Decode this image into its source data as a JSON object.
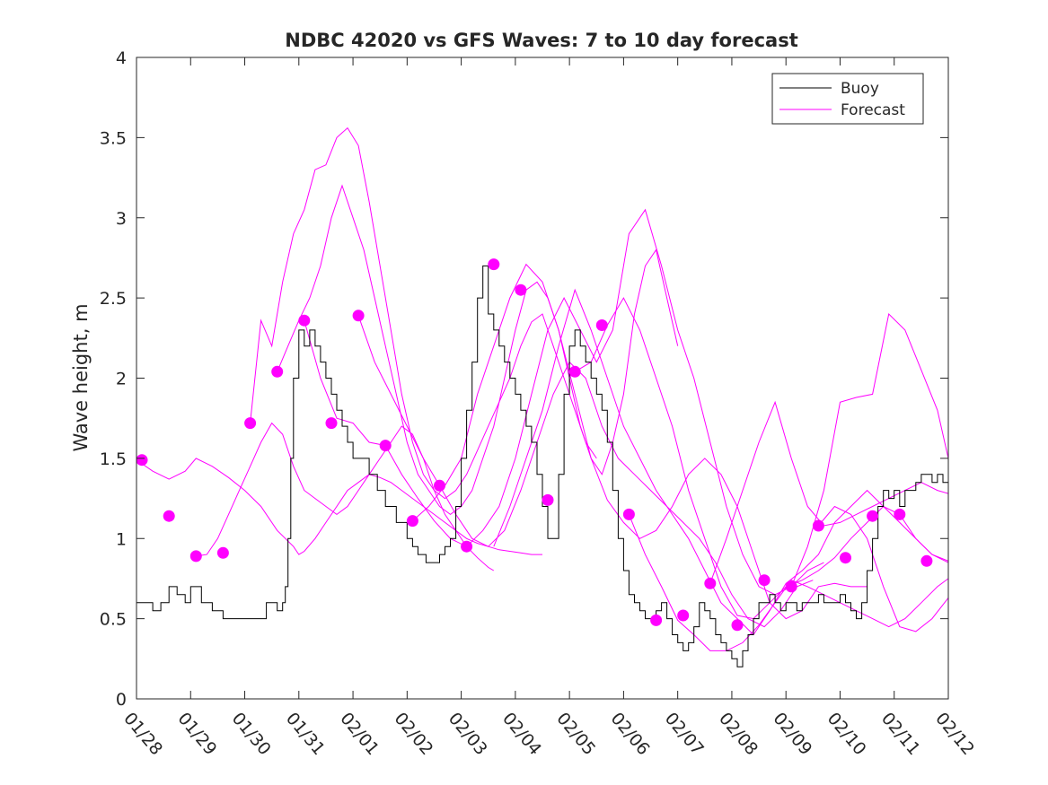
{
  "chart_data": {
    "type": "line",
    "title": "NDBC 42020 vs GFS Waves: 7 to 10 day forecast",
    "xlabel": "",
    "ylabel": "Wave height, m",
    "xlim": [
      0,
      15
    ],
    "ylim": [
      0,
      4
    ],
    "x_ticks": [
      0,
      1,
      2,
      3,
      4,
      5,
      6,
      7,
      8,
      9,
      10,
      11,
      12,
      13,
      14,
      15
    ],
    "x_tick_labels": [
      "01/28",
      "01/29",
      "01/30",
      "01/31",
      "02/01",
      "02/02",
      "02/03",
      "02/04",
      "02/05",
      "02/06",
      "02/07",
      "02/08",
      "02/09",
      "02/10",
      "02/11",
      "02/12"
    ],
    "y_ticks": [
      0,
      0.5,
      1,
      1.5,
      2,
      2.5,
      3,
      3.5,
      4
    ],
    "y_tick_labels": [
      "0",
      "0.5",
      "1",
      "1.5",
      "2",
      "2.5",
      "3",
      "3.5",
      "4"
    ],
    "legend": {
      "position": "top-right",
      "entries": [
        "Buoy",
        "Forecast"
      ]
    },
    "colors": {
      "buoy": "#000000",
      "forecast": "#ff00ff",
      "axes": "#262626"
    },
    "buoy": {
      "name": "Buoy",
      "x": [
        0,
        0.15,
        0.3,
        0.45,
        0.6,
        0.75,
        0.9,
        1.0,
        1.2,
        1.4,
        1.6,
        1.8,
        2.0,
        2.2,
        2.4,
        2.6,
        2.7,
        2.75,
        2.8,
        2.85,
        2.9,
        3.0,
        3.1,
        3.2,
        3.3,
        3.4,
        3.5,
        3.6,
        3.7,
        3.8,
        3.9,
        4.0,
        4.15,
        4.3,
        4.45,
        4.6,
        4.8,
        5.0,
        5.1,
        5.2,
        5.35,
        5.5,
        5.6,
        5.7,
        5.8,
        5.9,
        6.0,
        6.1,
        6.2,
        6.3,
        6.4,
        6.5,
        6.6,
        6.7,
        6.8,
        6.9,
        7.0,
        7.1,
        7.2,
        7.3,
        7.4,
        7.5,
        7.6,
        7.7,
        7.8,
        7.9,
        8.0,
        8.1,
        8.2,
        8.3,
        8.4,
        8.5,
        8.6,
        8.7,
        8.8,
        8.9,
        9.0,
        9.1,
        9.2,
        9.3,
        9.4,
        9.5,
        9.6,
        9.7,
        9.8,
        9.9,
        10.0,
        10.1,
        10.2,
        10.3,
        10.4,
        10.5,
        10.6,
        10.7,
        10.8,
        10.9,
        11.0,
        11.1,
        11.2,
        11.3,
        11.4,
        11.5,
        11.6,
        11.7,
        11.8,
        11.9,
        12.0,
        12.1,
        12.2,
        12.3,
        12.4,
        12.5,
        12.6,
        12.7,
        12.8,
        12.9,
        13.0,
        13.1,
        13.2,
        13.3,
        13.4,
        13.5,
        13.6,
        13.7,
        13.8,
        13.9,
        14.0,
        14.1,
        14.2,
        14.3,
        14.4,
        14.5,
        14.6,
        14.7,
        14.8,
        14.9,
        15.0
      ],
      "y": [
        0.6,
        0.6,
        0.55,
        0.6,
        0.7,
        0.65,
        0.6,
        0.7,
        0.6,
        0.55,
        0.5,
        0.5,
        0.5,
        0.5,
        0.6,
        0.55,
        0.6,
        0.7,
        1.0,
        1.5,
        2.0,
        2.3,
        2.2,
        2.3,
        2.2,
        2.1,
        2.0,
        1.9,
        1.8,
        1.7,
        1.6,
        1.5,
        1.5,
        1.4,
        1.3,
        1.2,
        1.1,
        1.0,
        0.95,
        0.9,
        0.85,
        0.85,
        0.9,
        0.95,
        1.0,
        1.2,
        1.5,
        1.8,
        2.1,
        2.5,
        2.7,
        2.4,
        2.3,
        2.2,
        2.1,
        2.0,
        1.9,
        1.8,
        1.7,
        1.6,
        1.4,
        1.2,
        1.0,
        1.0,
        1.4,
        1.9,
        2.2,
        2.3,
        2.2,
        2.1,
        2.0,
        1.9,
        1.8,
        1.6,
        1.3,
        1.0,
        0.8,
        0.65,
        0.6,
        0.55,
        0.5,
        0.5,
        0.55,
        0.6,
        0.5,
        0.4,
        0.35,
        0.3,
        0.35,
        0.45,
        0.6,
        0.55,
        0.5,
        0.4,
        0.35,
        0.3,
        0.25,
        0.2,
        0.3,
        0.4,
        0.5,
        0.6,
        0.6,
        0.65,
        0.6,
        0.55,
        0.6,
        0.6,
        0.55,
        0.6,
        0.6,
        0.6,
        0.65,
        0.6,
        0.6,
        0.6,
        0.65,
        0.6,
        0.55,
        0.5,
        0.6,
        0.8,
        1.0,
        1.2,
        1.3,
        1.25,
        1.3,
        1.2,
        1.3,
        1.3,
        1.35,
        1.4,
        1.4,
        1.35,
        1.4,
        1.35,
        1.4
      ]
    },
    "forecasts": [
      {
        "name": "Forecast",
        "x": [
          0.0,
          0.3,
          0.6,
          0.9,
          1.1,
          1.4,
          1.7,
          2.0,
          2.3,
          2.6,
          2.9,
          3.0,
          3.1,
          3.3,
          3.5,
          3.7,
          3.9,
          4.1,
          4.3,
          4.5,
          4.7,
          4.9,
          5.1,
          5.3,
          5.5,
          5.7,
          5.9,
          6.1,
          6.3,
          6.5,
          6.7,
          6.9,
          7.1,
          7.3,
          7.5
        ],
        "y": [
          1.49,
          1.42,
          1.37,
          1.42,
          1.5,
          1.45,
          1.38,
          1.3,
          1.2,
          1.05,
          0.95,
          0.9,
          0.92,
          1.0,
          1.1,
          1.2,
          1.3,
          1.35,
          1.4,
          1.38,
          1.35,
          1.3,
          1.25,
          1.2,
          1.15,
          1.1,
          1.05,
          1.0,
          0.97,
          0.95,
          0.93,
          0.92,
          0.91,
          0.9,
          0.9
        ]
      },
      {
        "name": "Forecast",
        "x": [
          1.1,
          1.3,
          1.5,
          1.7,
          1.9,
          2.1,
          2.3,
          2.5,
          2.7,
          2.9,
          3.1,
          3.3,
          3.5,
          3.7,
          3.9,
          4.1,
          4.3,
          4.5,
          4.7,
          4.9,
          5.1,
          5.3,
          5.5,
          5.7,
          5.9,
          6.1,
          6.3,
          6.5,
          6.6
        ],
        "y": [
          0.89,
          0.9,
          1.0,
          1.15,
          1.3,
          1.45,
          1.6,
          1.72,
          1.65,
          1.45,
          1.3,
          1.25,
          1.2,
          1.15,
          1.2,
          1.3,
          1.4,
          1.5,
          1.6,
          1.7,
          1.65,
          1.5,
          1.3,
          1.15,
          1.05,
          0.95,
          0.88,
          0.82,
          0.8
        ]
      },
      {
        "name": "Forecast",
        "x": [
          2.1,
          2.3,
          2.5,
          2.7,
          2.9,
          3.1,
          3.3,
          3.5,
          3.7,
          3.9,
          4.1,
          4.3,
          4.5,
          4.7,
          4.9,
          5.1,
          5.3,
          5.5,
          5.7,
          5.9,
          6.1,
          6.3,
          6.5,
          6.7,
          6.9,
          7.1,
          7.3,
          7.5,
          7.7,
          7.9,
          8.1,
          8.3,
          8.5
        ],
        "y": [
          1.72,
          2.36,
          2.2,
          2.6,
          2.9,
          3.05,
          3.3,
          3.33,
          3.5,
          3.56,
          3.45,
          3.1,
          2.7,
          2.3,
          1.9,
          1.6,
          1.4,
          1.3,
          1.25,
          1.3,
          1.4,
          1.55,
          1.7,
          1.85,
          2.0,
          2.2,
          2.35,
          2.4,
          2.2,
          2.0,
          1.8,
          1.6,
          1.5
        ]
      },
      {
        "name": "Forecast",
        "x": [
          2.6,
          2.8,
          3.0,
          3.2,
          3.4,
          3.6,
          3.8,
          4.0,
          4.2,
          4.4,
          4.6,
          4.8,
          5.0,
          5.2,
          5.4,
          5.6,
          5.8,
          6.0,
          6.2,
          6.4,
          6.6,
          6.8,
          7.0,
          7.2,
          7.4,
          7.6,
          7.8,
          8.0,
          8.2,
          8.4,
          8.6,
          8.8,
          9.0,
          9.2,
          9.4,
          9.6,
          9.8,
          10.0
        ],
        "y": [
          2.04,
          2.2,
          2.36,
          2.5,
          2.7,
          3.0,
          3.2,
          3.0,
          2.8,
          2.5,
          2.2,
          1.9,
          1.6,
          1.4,
          1.3,
          1.2,
          1.15,
          1.2,
          1.3,
          1.5,
          1.7,
          2.0,
          2.3,
          2.55,
          2.6,
          2.5,
          2.3,
          2.0,
          1.7,
          1.5,
          1.4,
          1.6,
          1.9,
          2.4,
          2.7,
          2.8,
          2.5,
          2.2
        ]
      },
      {
        "name": "Forecast",
        "x": [
          3.1,
          3.4,
          3.7,
          4.0,
          4.3,
          4.6,
          4.9,
          5.2,
          5.5,
          5.8,
          6.1,
          6.4,
          6.7,
          7.0,
          7.3,
          7.6,
          7.9,
          8.2,
          8.5,
          8.8,
          9.1,
          9.4,
          9.7,
          10.0,
          10.3,
          10.6,
          10.9,
          11.2,
          11.5,
          11.8,
          12.1,
          12.4,
          12.7
        ],
        "y": [
          2.36,
          2.0,
          1.75,
          1.72,
          1.6,
          1.58,
          1.4,
          1.25,
          1.11,
          1.0,
          0.95,
          1.05,
          1.2,
          1.5,
          1.9,
          2.3,
          2.5,
          2.3,
          2.1,
          2.3,
          2.9,
          3.05,
          2.7,
          2.3,
          2.0,
          1.6,
          1.2,
          0.9,
          0.7,
          0.65,
          0.7,
          0.8,
          0.85
        ]
      },
      {
        "name": "Forecast",
        "x": [
          4.1,
          4.4,
          4.7,
          5.0,
          5.3,
          5.6,
          5.9,
          6.2,
          6.5,
          6.8,
          7.1,
          7.4,
          7.7,
          8.0,
          8.3,
          8.6,
          8.9,
          9.2,
          9.5,
          9.8,
          10.1,
          10.4,
          10.7,
          11.0,
          11.3,
          11.6,
          11.9,
          12.2,
          12.5
        ],
        "y": [
          2.39,
          2.1,
          1.9,
          1.7,
          1.5,
          1.33,
          1.15,
          1.0,
          0.95,
          1.05,
          1.3,
          1.6,
          1.9,
          2.1,
          2.0,
          1.7,
          1.5,
          1.4,
          1.3,
          1.2,
          1.1,
          1.0,
          0.85,
          0.65,
          0.5,
          0.45,
          0.55,
          0.7,
          0.74
        ]
      },
      {
        "name": "Forecast",
        "x": [
          5.1,
          5.4,
          5.7,
          6.0,
          6.3,
          6.6,
          6.9,
          7.2,
          7.5,
          7.8,
          8.1,
          8.4,
          8.7,
          9.0,
          9.3,
          9.6,
          9.9,
          10.2,
          10.5,
          10.8,
          11.1,
          11.4,
          11.7,
          12.0,
          12.3,
          12.6,
          12.9,
          13.2,
          13.5
        ],
        "y": [
          1.11,
          1.2,
          1.33,
          1.5,
          1.9,
          2.2,
          2.5,
          2.71,
          2.6,
          2.3,
          1.9,
          1.5,
          1.24,
          1.1,
          1.0,
          1.05,
          1.2,
          1.4,
          1.5,
          1.4,
          1.2,
          0.9,
          0.6,
          0.5,
          0.55,
          0.7,
          0.72,
          0.7,
          0.7
        ]
      },
      {
        "name": "Forecast",
        "x": [
          6.6,
          6.9,
          7.2,
          7.5,
          7.8,
          8.1,
          8.4,
          8.7,
          9.0,
          9.3,
          9.6,
          9.9,
          10.2,
          10.5,
          10.8,
          11.1,
          11.4,
          11.7,
          12.0,
          12.3,
          12.6,
          12.9,
          13.2,
          13.5,
          13.8,
          14.1,
          14.4,
          14.7,
          15.0
        ],
        "y": [
          0.95,
          1.2,
          1.5,
          1.8,
          2.2,
          2.55,
          2.3,
          2.0,
          1.7,
          1.5,
          1.3,
          1.15,
          1.0,
          0.8,
          0.6,
          0.5,
          0.4,
          0.55,
          0.72,
          0.8,
          0.9,
          1.1,
          1.2,
          1.3,
          1.2,
          1.1,
          1.0,
          0.9,
          0.86
        ]
      },
      {
        "name": "Forecast",
        "x": [
          8.1,
          8.4,
          8.7,
          9.0,
          9.3,
          9.6,
          9.9,
          10.2,
          10.5,
          10.8,
          11.1,
          11.4,
          11.7,
          12.0,
          12.3,
          12.6,
          12.9,
          13.2,
          13.5,
          13.8,
          14.1,
          14.4,
          14.7,
          15.0
        ],
        "y": [
          2.04,
          2.1,
          2.33,
          2.5,
          2.3,
          2.0,
          1.7,
          1.3,
          1.0,
          0.7,
          0.52,
          0.5,
          0.6,
          0.7,
          0.74,
          0.8,
          0.88,
          1.0,
          1.1,
          1.2,
          1.15,
          1.0,
          0.9,
          0.85
        ]
      },
      {
        "name": "Forecast",
        "x": [
          9.1,
          9.4,
          9.7,
          10.0,
          10.3,
          10.6,
          10.9,
          11.2,
          11.5,
          11.8,
          12.1,
          12.4,
          12.7,
          13.0,
          13.3,
          13.6,
          13.9,
          14.2,
          14.5,
          14.8,
          15.0
        ],
        "y": [
          1.15,
          0.9,
          0.7,
          0.49,
          0.4,
          0.3,
          0.3,
          0.35,
          0.46,
          0.6,
          0.74,
          0.7,
          0.65,
          0.6,
          0.55,
          0.5,
          0.45,
          0.5,
          0.6,
          0.7,
          0.75
        ]
      },
      {
        "name": "Forecast",
        "x": [
          10.6,
          10.9,
          11.2,
          11.5,
          11.8,
          12.1,
          12.4,
          12.7,
          13.0,
          13.3,
          13.6,
          13.9,
          14.2,
          14.5,
          14.8,
          15.0
        ],
        "y": [
          0.72,
          1.0,
          1.3,
          1.6,
          1.85,
          1.5,
          1.2,
          1.08,
          1.1,
          1.15,
          1.2,
          1.25,
          1.3,
          1.35,
          1.3,
          1.28
        ]
      },
      {
        "name": "Forecast",
        "x": [
          12.1,
          12.4,
          12.7,
          13.0,
          13.3,
          13.6,
          13.9,
          14.2,
          14.5,
          14.8,
          15.0
        ],
        "y": [
          0.7,
          0.95,
          1.3,
          1.85,
          1.88,
          1.9,
          2.4,
          2.3,
          2.05,
          1.8,
          1.5
        ]
      },
      {
        "name": "Forecast",
        "x": [
          12.6,
          12.9,
          13.2,
          13.5,
          13.8,
          14.1,
          14.4,
          14.7,
          15.0
        ],
        "y": [
          1.08,
          1.2,
          1.15,
          1.0,
          0.7,
          0.45,
          0.42,
          0.5,
          0.63
        ]
      }
    ],
    "forecast_points": {
      "x": [
        0.1,
        0.6,
        1.1,
        1.6,
        2.1,
        2.6,
        3.1,
        3.6,
        4.1,
        4.6,
        5.1,
        5.6,
        6.1,
        6.6,
        7.1,
        7.6,
        8.1,
        8.6,
        9.1,
        9.6,
        10.1,
        10.6,
        11.1,
        11.6,
        12.1,
        12.6,
        13.1,
        13.6,
        14.1,
        14.6
      ],
      "y": [
        1.49,
        1.14,
        0.89,
        0.91,
        1.72,
        2.04,
        2.36,
        1.72,
        2.39,
        1.58,
        1.11,
        1.33,
        0.95,
        2.71,
        2.55,
        1.24,
        2.04,
        2.33,
        1.15,
        0.49,
        0.52,
        0.72,
        0.46,
        0.74,
        0.7,
        1.08,
        0.88,
        1.14,
        1.15,
        0.86
      ]
    }
  }
}
